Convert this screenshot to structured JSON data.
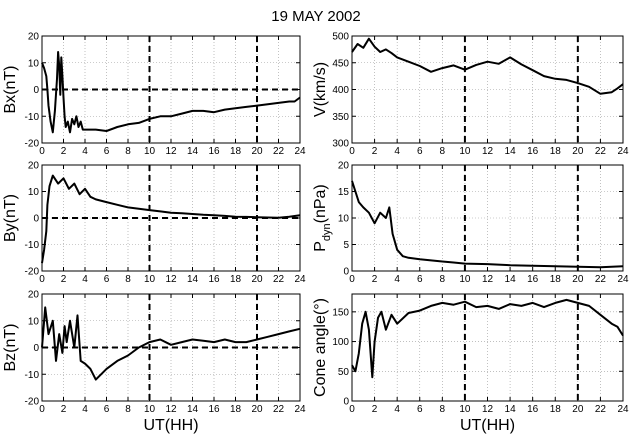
{
  "chart_data": {
    "title": "19 MAY 2002",
    "xlabel": "UT(HH)",
    "x_ticks": [
      0,
      2,
      4,
      6,
      8,
      10,
      12,
      14,
      16,
      18,
      20,
      22,
      24
    ],
    "xlim": [
      0,
      24
    ],
    "panels": [
      {
        "id": "bx",
        "type": "line",
        "ylabel": "Bx(nT)",
        "ylim": [
          -20,
          20
        ],
        "y_ticks": [
          -20,
          -10,
          0,
          10,
          20
        ],
        "grid": "dotted",
        "vlines": [
          10,
          20
        ],
        "hlines": [
          0
        ],
        "x": [
          0,
          0.2,
          0.4,
          0.5,
          0.6,
          0.8,
          1.0,
          1.2,
          1.4,
          1.5,
          1.6,
          1.7,
          1.8,
          1.9,
          2.0,
          2.1,
          2.2,
          2.4,
          2.6,
          2.8,
          3.0,
          3.2,
          3.4,
          3.6,
          3.8,
          4,
          5,
          6,
          7,
          8,
          9,
          10,
          11,
          12,
          13,
          14,
          15,
          16,
          17,
          18,
          19,
          20,
          21,
          22,
          23,
          23.5,
          24
        ],
        "y": [
          10,
          8,
          5,
          0,
          -6,
          -12,
          -16,
          -8,
          4,
          14,
          9,
          -2,
          12,
          5,
          -3,
          -10,
          -14,
          -12,
          -16,
          -11,
          -13,
          -10,
          -14,
          -12,
          -15,
          -15,
          -15,
          -15.5,
          -14,
          -13,
          -12.5,
          -11,
          -10,
          -10,
          -9,
          -8,
          -8,
          -8.5,
          -7.5,
          -7,
          -6.5,
          -6,
          -5.5,
          -5,
          -4.5,
          -4.5,
          -3
        ]
      },
      {
        "id": "v",
        "type": "line",
        "ylabel": "V(km/s)",
        "ylim": [
          300,
          500
        ],
        "y_ticks": [
          300,
          350,
          400,
          450,
          500
        ],
        "grid": "dotted",
        "vlines": [
          10,
          20
        ],
        "hlines": [],
        "x": [
          0,
          0.5,
          1,
          1.5,
          2,
          2.5,
          3,
          3.5,
          4,
          5,
          6,
          7,
          8,
          9,
          10,
          11,
          12,
          13,
          14,
          15,
          16,
          17,
          18,
          19,
          20,
          21,
          22,
          23,
          23.5,
          24
        ],
        "y": [
          470,
          485,
          478,
          495,
          480,
          470,
          475,
          468,
          460,
          452,
          444,
          433,
          440,
          445,
          437,
          446,
          452,
          448,
          460,
          447,
          436,
          425,
          420,
          418,
          412,
          405,
          392,
          395,
          402,
          410
        ]
      },
      {
        "id": "by",
        "type": "line",
        "ylabel": "By(nT)",
        "ylim": [
          -20,
          20
        ],
        "y_ticks": [
          -20,
          -10,
          0,
          10,
          20
        ],
        "grid": "dotted",
        "vlines": [
          10,
          20
        ],
        "hlines": [
          0
        ],
        "x": [
          0,
          0.2,
          0.4,
          0.5,
          0.7,
          1.0,
          1.5,
          2.0,
          2.5,
          3.0,
          3.5,
          4.0,
          4.5,
          5,
          6,
          7,
          8,
          9,
          10,
          11,
          12,
          13,
          14,
          15,
          16,
          17,
          18,
          19,
          20,
          21,
          22,
          23,
          24
        ],
        "y": [
          -17,
          -12,
          -5,
          5,
          12,
          16,
          13,
          15,
          11,
          13,
          9,
          11,
          8,
          7,
          6,
          5,
          4,
          3.5,
          3,
          2.5,
          2,
          1.8,
          1.5,
          1.2,
          1,
          0.8,
          0.5,
          0.4,
          0.3,
          0.2,
          0.1,
          0.5,
          1
        ]
      },
      {
        "id": "pdyn",
        "type": "line",
        "ylabel": "P_dyn(nPa)",
        "ylabel_main": "P",
        "ylabel_sub": "dyn",
        "ylabel_unit": "(nPa)",
        "ylim": [
          0,
          20
        ],
        "y_ticks": [
          0,
          5,
          10,
          15,
          20
        ],
        "grid": "dotted",
        "vlines": [
          10,
          20
        ],
        "hlines": [],
        "x": [
          0,
          0.3,
          0.6,
          1.0,
          1.5,
          2.0,
          2.5,
          3.0,
          3.3,
          3.6,
          4.0,
          4.5,
          5,
          6,
          7,
          8,
          9,
          10,
          12,
          14,
          16,
          18,
          20,
          22,
          24
        ],
        "y": [
          17,
          15,
          13,
          12,
          11,
          9,
          11,
          10,
          12,
          7,
          4,
          2.8,
          2.5,
          2.2,
          2.0,
          1.8,
          1.6,
          1.4,
          1.3,
          1.1,
          1.0,
          0.9,
          0.8,
          0.7,
          0.9
        ]
      },
      {
        "id": "bz",
        "type": "line",
        "ylabel": "Bz(nT)",
        "ylim": [
          -20,
          20
        ],
        "y_ticks": [
          -20,
          -10,
          0,
          10,
          20
        ],
        "grid": "dotted",
        "vlines": [
          10,
          20
        ],
        "hlines": [
          0
        ],
        "x": [
          0,
          0.3,
          0.6,
          1.0,
          1.3,
          1.6,
          1.9,
          2.1,
          2.3,
          2.6,
          3.0,
          3.3,
          3.6,
          4.0,
          4.5,
          5.0,
          5.5,
          6.0,
          7.0,
          8.0,
          9.0,
          10.0,
          11.0,
          12.0,
          13.0,
          14.0,
          15.0,
          16.0,
          17.0,
          18.0,
          19.0,
          20.0,
          21.0,
          22.0,
          23.0,
          24.0
        ],
        "y": [
          0,
          15,
          5,
          10,
          -5,
          5,
          -2,
          8,
          2,
          10,
          0,
          12,
          -5,
          -6,
          -8,
          -12,
          -10,
          -8,
          -5,
          -3,
          0,
          2,
          3,
          1,
          2,
          3,
          2.5,
          2,
          3,
          2,
          2,
          3,
          4,
          5,
          6,
          7
        ]
      },
      {
        "id": "cone",
        "type": "line",
        "ylabel": "Cone angle(°)",
        "ylim": [
          0,
          180
        ],
        "y_ticks": [
          0,
          50,
          100,
          150
        ],
        "grid": "dotted",
        "vlines": [
          10,
          20
        ],
        "hlines": [],
        "x": [
          0,
          0.3,
          0.6,
          0.9,
          1.2,
          1.5,
          1.8,
          2.0,
          2.3,
          2.6,
          3.0,
          3.5,
          4.0,
          5,
          6,
          7,
          8,
          9,
          10,
          11,
          12,
          13,
          14,
          15,
          16,
          17,
          18,
          19,
          20,
          21,
          22,
          23,
          23.5,
          24
        ],
        "y": [
          60,
          50,
          80,
          130,
          150,
          120,
          40,
          100,
          140,
          150,
          120,
          145,
          130,
          148,
          152,
          160,
          165,
          162,
          167,
          158,
          160,
          155,
          163,
          160,
          165,
          158,
          165,
          170,
          165,
          160,
          145,
          130,
          125,
          110
        ]
      }
    ]
  }
}
